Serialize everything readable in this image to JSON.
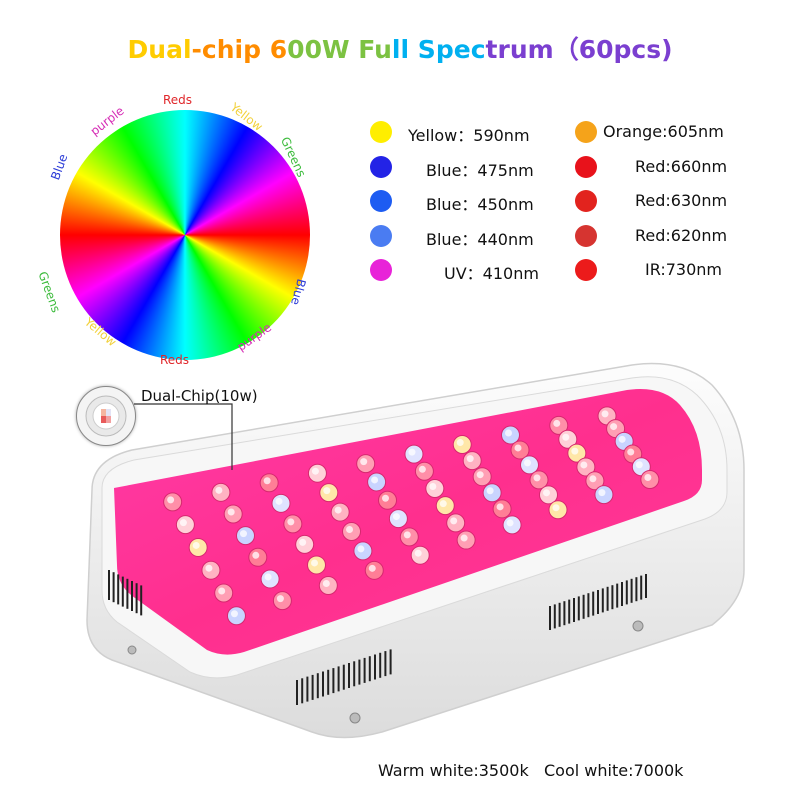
{
  "title": {
    "part1": "Dual-chip 600W Full Spectrum",
    "part2": "（60pcs)",
    "colors": [
      "#ffcc00",
      "#ff8c00",
      "#7cc242",
      "#00b0f0",
      "#7b3fd0"
    ]
  },
  "wheel_labels": [
    {
      "text": "Reds",
      "color": "#e0262a"
    },
    {
      "text": "Yellow",
      "color": "#f2d13b"
    },
    {
      "text": "Greens",
      "color": "#3dbb3d"
    },
    {
      "text": "Blue",
      "color": "#2b3bd6"
    },
    {
      "text": "purple",
      "color": "#d52bb5"
    },
    {
      "text": "Reds",
      "color": "#e0262a"
    },
    {
      "text": "Yellow",
      "color": "#f2d13b"
    },
    {
      "text": "Greens",
      "color": "#3dbb3d"
    },
    {
      "text": "Blue",
      "color": "#2b3bd6"
    },
    {
      "text": "purple",
      "color": "#d52bb5"
    }
  ],
  "legend_left": [
    {
      "label": "Yellow：590nm",
      "color": "#ffee00"
    },
    {
      "label": "Blue：475nm",
      "color": "#2323e6"
    },
    {
      "label": "Blue：450nm",
      "color": "#1d5cf2"
    },
    {
      "label": "Blue：440nm",
      "color": "#4a7cf2"
    },
    {
      "label": "UV：410nm",
      "color": "#e823d8"
    }
  ],
  "legend_right": [
    {
      "label": "Orange:605nm",
      "color": "#f5a31a"
    },
    {
      "label": "Red:660nm",
      "color": "#e8121b"
    },
    {
      "label": "Red:630nm",
      "color": "#e2231e"
    },
    {
      "label": "Red:620nm",
      "color": "#d63430"
    },
    {
      "label": "IR:730nm",
      "color": "#ec1b1b"
    }
  ],
  "callout": {
    "label": "Dual-Chip(10w)"
  },
  "footer": {
    "label": "Warm white:3500k   Cool white:7000k"
  }
}
